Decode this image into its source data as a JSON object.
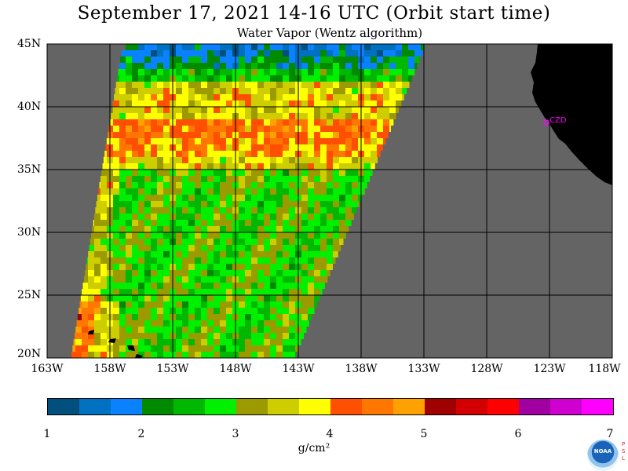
{
  "header": {
    "title": "September 17, 2021  14-16 UTC  (Orbit start time)",
    "subtitle": "Water Vapor (Wentz algorithm)"
  },
  "axes": {
    "lat_labels": [
      "45N",
      "40N",
      "35N",
      "30N",
      "25N",
      "20N"
    ],
    "lon_labels": [
      "163W",
      "158W",
      "153W",
      "148W",
      "143W",
      "138W",
      "133W",
      "128W",
      "123W",
      "118W"
    ]
  },
  "map": {
    "extent": {
      "lon_min": -163,
      "lon_max": -118,
      "lat_min": 20,
      "lat_max": 45
    },
    "place_label": "CZD",
    "colors": {
      "no_data": "#646464",
      "land": "#000000",
      "grid": "#000000",
      "marker": "#ff00ff"
    }
  },
  "colorbar": {
    "tick_labels": [
      "1",
      "2",
      "3",
      "4",
      "5",
      "6",
      "7"
    ],
    "unit": "g/cm²",
    "range": [
      1,
      7
    ],
    "colors": [
      "#004f7c",
      "#0070c0",
      "#0a82ff",
      "#008a00",
      "#00b800",
      "#00f000",
      "#9b9b00",
      "#cdcd00",
      "#ffff00",
      "#ff4f00",
      "#ff7600",
      "#ffa100",
      "#a00000",
      "#d20000",
      "#ff0000",
      "#a000a0",
      "#cf00cf",
      "#ff00ff"
    ]
  },
  "logo": {
    "text": "NOAA",
    "side_letters": "P S L"
  }
}
